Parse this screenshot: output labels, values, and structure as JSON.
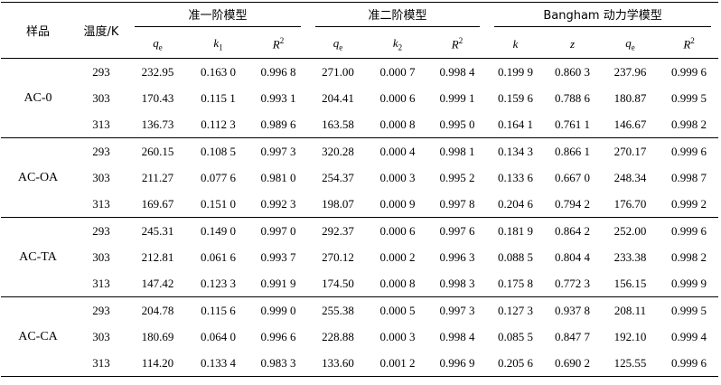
{
  "header": {
    "sample": "样品",
    "temperature": "温度/K",
    "groups": [
      "准一阶模型",
      "准二阶模型",
      "Bangham 动力学模型"
    ],
    "cols": [
      {
        "base": "q",
        "sub": "e"
      },
      {
        "base": "k",
        "sub": "1"
      },
      {
        "base": "R",
        "sup": "2"
      },
      {
        "base": "q",
        "sub": "e"
      },
      {
        "base": "k",
        "sub": "2"
      },
      {
        "base": "R",
        "sup": "2"
      },
      {
        "base": "k"
      },
      {
        "base": "z"
      },
      {
        "base": "q",
        "sub": "e"
      },
      {
        "base": "R",
        "sup": "2"
      }
    ]
  },
  "rows": [
    {
      "sample": "AC-0",
      "temp": "293",
      "v": [
        "232.95",
        "0.163 0",
        "0.996 8",
        "271.00",
        "0.000 7",
        "0.998 4",
        "0.199 9",
        "0.860 3",
        "237.96",
        "0.999 6"
      ]
    },
    {
      "sample": "",
      "temp": "303",
      "v": [
        "170.43",
        "0.115 1",
        "0.993 1",
        "204.41",
        "0.000 6",
        "0.999 1",
        "0.159 6",
        "0.788 6",
        "180.87",
        "0.999 5"
      ]
    },
    {
      "sample": "",
      "temp": "313",
      "v": [
        "136.73",
        "0.112 3",
        "0.989 6",
        "163.58",
        "0.000 8",
        "0.995 0",
        "0.164 1",
        "0.761 1",
        "146.67",
        "0.998 2"
      ]
    },
    {
      "sample": "AC-OA",
      "temp": "293",
      "v": [
        "260.15",
        "0.108 5",
        "0.997 3",
        "320.28",
        "0.000 4",
        "0.998 1",
        "0.134 3",
        "0.866 1",
        "270.17",
        "0.999 6"
      ]
    },
    {
      "sample": "",
      "temp": "303",
      "v": [
        "211.27",
        "0.077 6",
        "0.981 0",
        "254.37",
        "0.000 3",
        "0.995 2",
        "0.133 6",
        "0.667 0",
        "248.34",
        "0.998 7"
      ]
    },
    {
      "sample": "",
      "temp": "313",
      "v": [
        "169.67",
        "0.151 0",
        "0.992 3",
        "198.07",
        "0.000 9",
        "0.997 8",
        "0.204 6",
        "0.794 2",
        "176.70",
        "0.999 2"
      ]
    },
    {
      "sample": "AC-TA",
      "temp": "293",
      "v": [
        "245.31",
        "0.149 0",
        "0.997 0",
        "292.37",
        "0.000 6",
        "0.997 6",
        "0.181 9",
        "0.864 2",
        "252.00",
        "0.999 6"
      ]
    },
    {
      "sample": "",
      "temp": "303",
      "v": [
        "212.81",
        "0.061 6",
        "0.993 7",
        "270.12",
        "0.000 2",
        "0.996 3",
        "0.088 5",
        "0.804 4",
        "233.38",
        "0.998 2"
      ]
    },
    {
      "sample": "",
      "temp": "313",
      "v": [
        "147.42",
        "0.123 3",
        "0.991 9",
        "174.50",
        "0.000 8",
        "0.998 3",
        "0.175 8",
        "0.772 3",
        "156.15",
        "0.999 9"
      ]
    },
    {
      "sample": "AC-CA",
      "temp": "293",
      "v": [
        "204.78",
        "0.115 6",
        "0.999 0",
        "255.38",
        "0.000 5",
        "0.997 3",
        "0.127 3",
        "0.937 8",
        "208.11",
        "0.999 5"
      ]
    },
    {
      "sample": "",
      "temp": "303",
      "v": [
        "180.69",
        "0.064 0",
        "0.996 6",
        "228.88",
        "0.000 3",
        "0.998 4",
        "0.085 5",
        "0.847 7",
        "192.10",
        "0.999 4"
      ]
    },
    {
      "sample": "",
      "temp": "313",
      "v": [
        "114.20",
        "0.133 4",
        "0.983 3",
        "133.60",
        "0.001 2",
        "0.996 9",
        "0.205 6",
        "0.690 2",
        "125.55",
        "0.999 6"
      ]
    }
  ]
}
